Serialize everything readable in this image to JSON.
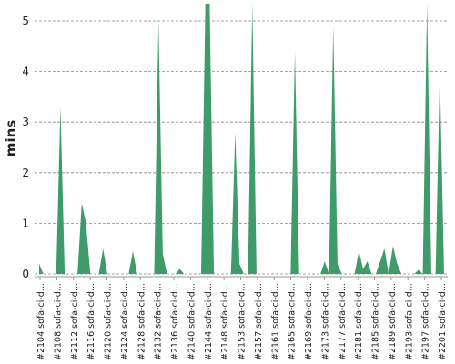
{
  "chart_data": {
    "type": "area",
    "ylabel": "mins",
    "xlabel": "",
    "ylim": [
      0,
      5.4
    ],
    "yticks": [
      0,
      1,
      2,
      3,
      4,
      5
    ],
    "ytick_labels": [
      "0",
      "1",
      "2",
      "3",
      "4",
      "5"
    ],
    "grid": "horizontal-dashed",
    "color": "#3f9b6a",
    "x_labels": [
      "#2104 sofa-ci-d...",
      "#2108 sofa-ci-d...",
      "#2112 sofa-ci-d...",
      "#2116 sofa-ci-d...",
      "#2120 sofa-ci-d...",
      "#2124 sofa-ci-d...",
      "#2128 sofa-ci-d...",
      "#2132 sofa-ci-d...",
      "#2136 sofa-ci-d...",
      "#2140 sofa-ci-d...",
      "#2144 sofa-ci-d...",
      "#2148 sofa-ci-d...",
      "#2153 sofa-ci-d...",
      "#2157 sofa-ci-d...",
      "#2161 sofa-ci-d...",
      "#2165 sofa-ci-d...",
      "#2169 sofa-ci-d...",
      "#2173 sofa-ci-d...",
      "#2177 sofa-ci-d...",
      "#2181 sofa-ci-d...",
      "#2185 sofa-ci-d...",
      "#2189 sofa-ci-d...",
      "#2193 sofa-ci-d...",
      "#2197 sofa-ci-d...",
      "#2201 sofa-ci-d..."
    ],
    "values": [
      0.2,
      0,
      0,
      0,
      0,
      3.3,
      0,
      0,
      0,
      0,
      1.4,
      1.0,
      0,
      0,
      0,
      0.5,
      0,
      0,
      0,
      0,
      0,
      0,
      0.45,
      0,
      0,
      0,
      0,
      0,
      5.0,
      0.4,
      0,
      0,
      0,
      0.1,
      0,
      0,
      0,
      0,
      0,
      6.5,
      6.5,
      0,
      0,
      0,
      0,
      0,
      2.8,
      0.2,
      0,
      0,
      6.5,
      0,
      0,
      0,
      0,
      0,
      0,
      0,
      0,
      0,
      4.4,
      0,
      0,
      0,
      0,
      0,
      0,
      0.25,
      0,
      4.9,
      0.2,
      0,
      0,
      0,
      0,
      0.45,
      0.1,
      0.25,
      0,
      0,
      0.25,
      0.5,
      0,
      0.55,
      0.2,
      0,
      0,
      0,
      0,
      0.08,
      0,
      6.5,
      0,
      0,
      4.0,
      0
    ]
  }
}
